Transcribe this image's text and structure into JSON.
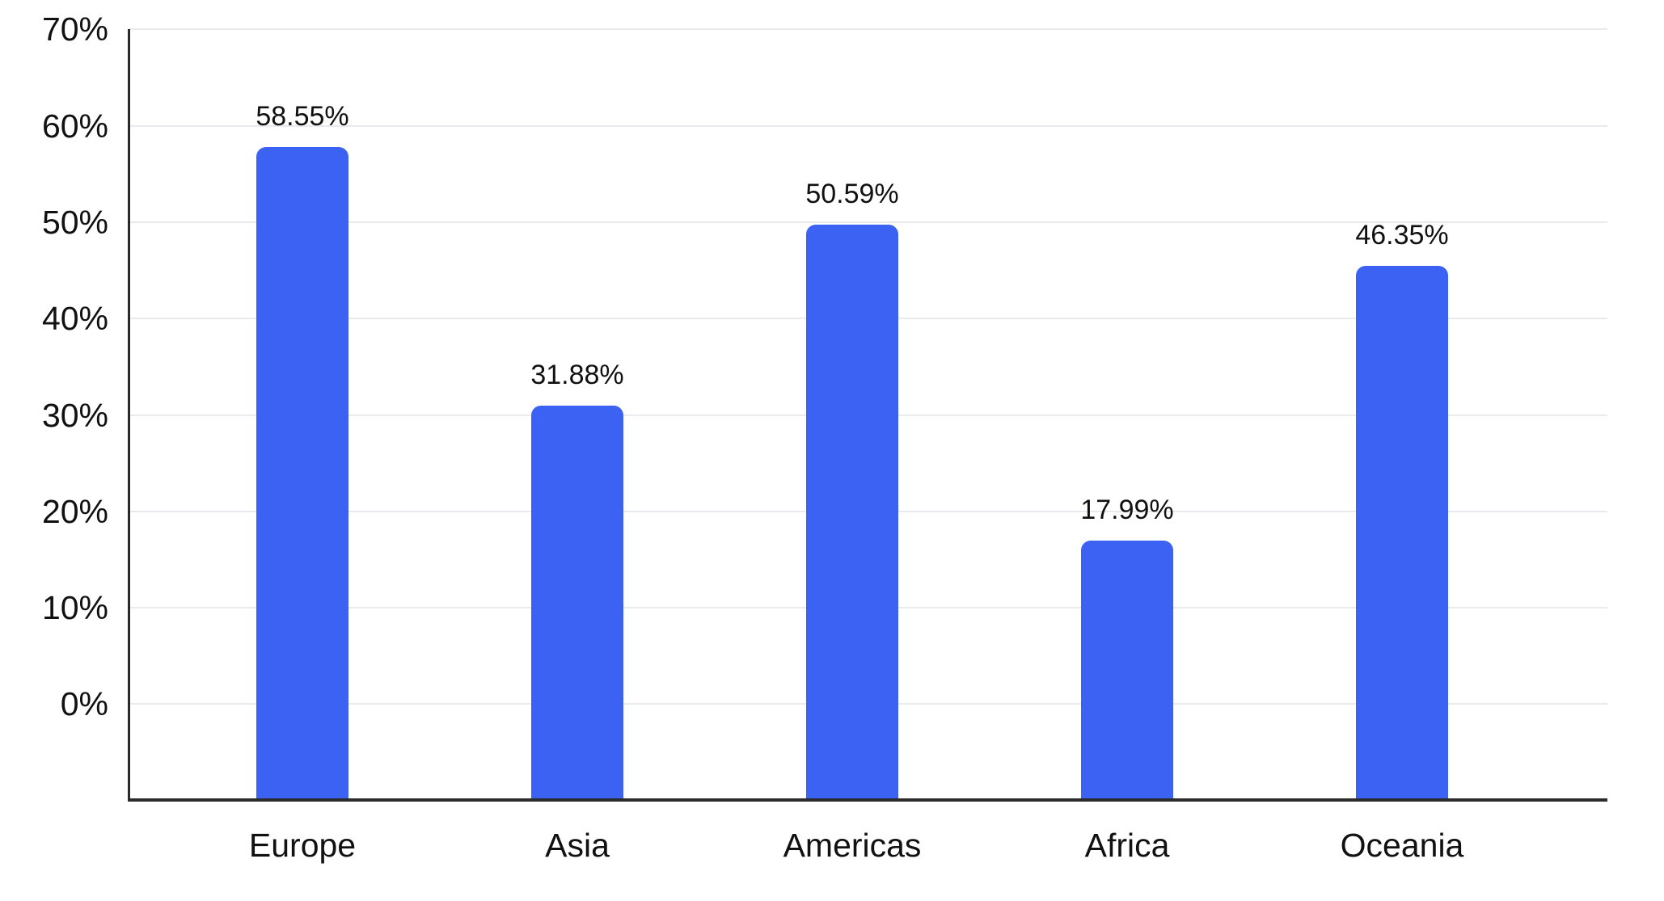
{
  "chart_data": {
    "type": "bar",
    "categories": [
      "Europe",
      "Asia",
      "Americas",
      "Africa",
      "Oceania"
    ],
    "values": [
      58.55,
      31.88,
      50.59,
      17.99,
      46.35
    ],
    "value_labels": [
      "58.55%",
      "31.88%",
      "50.59%",
      "17.99%",
      "46.35%"
    ],
    "title": "",
    "xlabel": "",
    "ylabel": "",
    "y_ticks": [
      0,
      10,
      20,
      30,
      40,
      50,
      60,
      70
    ],
    "y_tick_labels": [
      "0%",
      "10%",
      "20%",
      "30%",
      "40%",
      "50%",
      "60%",
      "70%"
    ],
    "ylim": [
      -10,
      70
    ],
    "grid": true,
    "legend": false,
    "colors": {
      "bar": "#3C62F4",
      "gridline": "#E8EAEE",
      "axis": "#2B2B2B",
      "text": "#111111",
      "background": "#FFFFFF"
    }
  }
}
